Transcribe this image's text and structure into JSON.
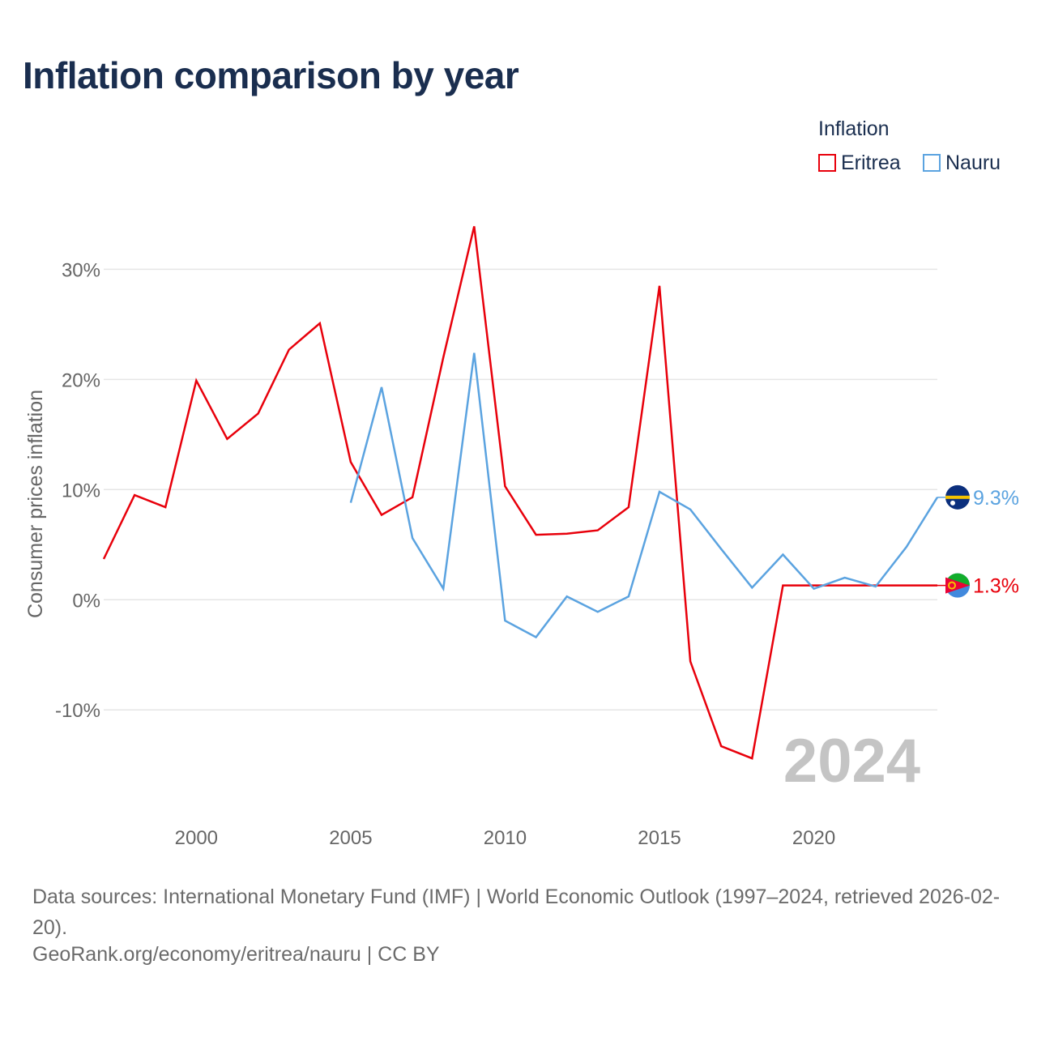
{
  "title": "Inflation comparison by year",
  "legend": {
    "title": "Inflation",
    "items": [
      {
        "label": "Eritrea",
        "color": "#e8000b"
      },
      {
        "label": "Nauru",
        "color": "#5ba3e0"
      }
    ]
  },
  "chart_data": {
    "type": "line",
    "title": "Inflation comparison by year",
    "xlabel": "",
    "ylabel": "Consumer prices inflation",
    "xlim": [
      1997,
      2024
    ],
    "ylim": [
      -18,
      34
    ],
    "x_ticks": [
      2000,
      2005,
      2010,
      2015,
      2020
    ],
    "y_ticks": [
      -10,
      0,
      10,
      20,
      30
    ],
    "y_tick_labels": [
      "-10%",
      "0%",
      "10%",
      "20%",
      "30%"
    ],
    "grid": true,
    "legend_position": "top-right",
    "watermark_year": "2024",
    "series": [
      {
        "name": "Eritrea",
        "color": "#e8000b",
        "x": [
          1997,
          1998,
          1999,
          2000,
          2001,
          2002,
          2003,
          2004,
          2005,
          2006,
          2007,
          2008,
          2009,
          2010,
          2011,
          2012,
          2013,
          2014,
          2015,
          2016,
          2017,
          2018,
          2019,
          2020,
          2021,
          2022,
          2023,
          2024
        ],
        "values": [
          3.7,
          9.5,
          8.4,
          19.9,
          14.6,
          16.9,
          22.7,
          25.1,
          12.5,
          7.7,
          9.3,
          22.0,
          33.9,
          10.3,
          5.9,
          6.0,
          6.3,
          8.4,
          28.5,
          -5.6,
          -13.3,
          -14.4,
          1.3,
          1.3,
          1.3,
          1.3,
          1.3,
          1.3
        ],
        "end_label": "1.3%"
      },
      {
        "name": "Nauru",
        "color": "#5ba3e0",
        "x": [
          2005,
          2006,
          2007,
          2008,
          2009,
          2010,
          2011,
          2012,
          2013,
          2014,
          2015,
          2016,
          2017,
          2018,
          2019,
          2020,
          2021,
          2022,
          2023,
          2024
        ],
        "values": [
          8.8,
          19.3,
          5.6,
          1.0,
          22.4,
          -1.9,
          -3.4,
          0.3,
          -1.1,
          0.3,
          9.8,
          8.2,
          4.6,
          1.1,
          4.1,
          1.0,
          2.0,
          1.2,
          4.8,
          9.3
        ],
        "end_label": "9.3%"
      }
    ]
  },
  "footer": {
    "source": "Data sources: International Monetary Fund (IMF) | World Economic Outlook (1997–2024, retrieved 2026-02-20).",
    "credit": "GeoRank.org/economy/eritrea/nauru | CC BY"
  }
}
